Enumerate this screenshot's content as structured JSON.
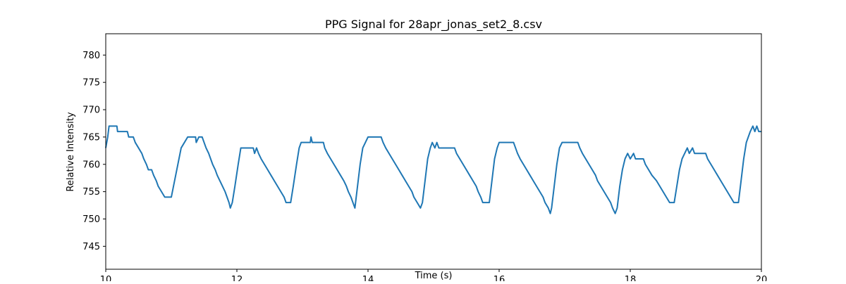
{
  "chart_data": {
    "type": "line",
    "title": "PPG Signal for 28apr_jonas_set2_8.csv",
    "x_label": "Time (s)",
    "y_label": "Relative Intensity",
    "color": "#1f77b4",
    "xlim": [
      10,
      20
    ],
    "xticks": [
      10,
      12,
      14,
      16,
      18,
      20
    ],
    "ylim": [
      740.8,
      783.9
    ],
    "yticks": [
      745,
      750,
      755,
      760,
      765,
      770,
      775,
      780
    ],
    "grid": false,
    "x": [
      10.0,
      10.03,
      10.05,
      10.17,
      10.18,
      10.33,
      10.35,
      10.42,
      10.45,
      10.5,
      10.55,
      10.58,
      10.62,
      10.65,
      10.7,
      10.73,
      10.77,
      10.8,
      10.85,
      10.9,
      11.0,
      11.05,
      11.1,
      11.15,
      11.2,
      11.25,
      11.37,
      11.38,
      11.42,
      11.47,
      11.5,
      11.53,
      11.57,
      11.6,
      11.63,
      11.67,
      11.7,
      11.74,
      11.78,
      11.82,
      11.85,
      11.88,
      11.9,
      11.93,
      11.97,
      12.02,
      12.06,
      12.25,
      12.27,
      12.3,
      12.33,
      12.37,
      12.42,
      12.47,
      12.52,
      12.57,
      12.62,
      12.67,
      12.72,
      12.75,
      12.82,
      12.86,
      12.91,
      12.95,
      12.98,
      13.12,
      13.13,
      13.15,
      13.32,
      13.34,
      13.38,
      13.43,
      13.48,
      13.53,
      13.58,
      13.63,
      13.67,
      13.7,
      13.74,
      13.77,
      13.8,
      13.84,
      13.88,
      13.92,
      13.96,
      14.0,
      14.2,
      14.23,
      14.27,
      14.32,
      14.37,
      14.42,
      14.47,
      14.52,
      14.57,
      14.62,
      14.67,
      14.7,
      14.75,
      14.8,
      14.83,
      14.87,
      14.91,
      14.95,
      14.98,
      15.02,
      15.05,
      15.08,
      15.32,
      15.35,
      15.4,
      15.45,
      15.5,
      15.55,
      15.6,
      15.65,
      15.68,
      15.72,
      15.75,
      15.85,
      15.89,
      15.93,
      15.97,
      16.0,
      16.22,
      16.25,
      16.28,
      16.32,
      16.37,
      16.42,
      16.47,
      16.52,
      16.57,
      16.62,
      16.67,
      16.7,
      16.75,
      16.78,
      16.8,
      16.84,
      16.88,
      16.92,
      16.96,
      17.2,
      17.23,
      17.27,
      17.32,
      17.37,
      17.42,
      17.47,
      17.5,
      17.55,
      17.6,
      17.65,
      17.7,
      17.73,
      17.77,
      17.8,
      17.84,
      17.88,
      17.92,
      17.96,
      18.0,
      18.05,
      18.08,
      18.2,
      18.23,
      18.28,
      18.33,
      18.4,
      18.45,
      18.5,
      18.55,
      18.6,
      18.67,
      18.71,
      18.75,
      18.79,
      18.83,
      18.87,
      18.9,
      18.95,
      18.98,
      19.15,
      19.18,
      19.23,
      19.28,
      19.33,
      19.38,
      19.43,
      19.48,
      19.53,
      19.58,
      19.65,
      19.69,
      19.73,
      19.77,
      19.8,
      19.83,
      19.87,
      19.9,
      19.93,
      19.96,
      20.0
    ],
    "values": [
      763,
      765,
      767,
      767,
      766,
      766,
      765,
      765,
      764,
      763,
      762,
      761,
      760,
      759,
      759,
      758,
      757,
      756,
      755,
      754,
      754,
      757,
      760,
      763,
      764,
      765,
      765,
      764,
      765,
      765,
      764,
      763,
      762,
      761,
      760,
      759,
      758,
      757,
      756,
      755,
      754,
      753,
      752,
      753,
      756,
      760,
      763,
      763,
      762,
      763,
      762,
      761,
      760,
      759,
      758,
      757,
      756,
      755,
      754,
      753,
      753,
      756,
      760,
      763,
      764,
      764,
      765,
      764,
      764,
      763,
      762,
      761,
      760,
      759,
      758,
      757,
      756,
      755,
      754,
      753,
      752,
      756,
      760,
      763,
      764,
      765,
      765,
      764,
      763,
      762,
      761,
      760,
      759,
      758,
      757,
      756,
      755,
      754,
      753,
      752,
      753,
      757,
      761,
      763,
      764,
      763,
      764,
      763,
      763,
      762,
      761,
      760,
      759,
      758,
      757,
      756,
      755,
      754,
      753,
      753,
      757,
      761,
      763,
      764,
      764,
      763,
      762,
      761,
      760,
      759,
      758,
      757,
      756,
      755,
      754,
      753,
      752,
      751,
      752,
      756,
      760,
      763,
      764,
      764,
      763,
      762,
      761,
      760,
      759,
      758,
      757,
      756,
      755,
      754,
      753,
      752,
      751,
      752,
      756,
      759,
      761,
      762,
      761,
      762,
      761,
      761,
      760,
      759,
      758,
      757,
      756,
      755,
      754,
      753,
      753,
      756,
      759,
      761,
      762,
      763,
      762,
      763,
      762,
      762,
      761,
      760,
      759,
      758,
      757,
      756,
      755,
      754,
      753,
      753,
      757,
      761,
      764,
      765,
      766,
      767,
      766,
      767,
      766,
      766
    ]
  }
}
